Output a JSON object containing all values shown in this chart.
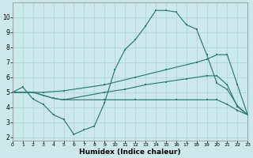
{
  "background_color": "#cce8e8",
  "grid_color": "#aad4d4",
  "line_color": "#2d7a72",
  "xlabel": "Humidex (Indice chaleur)",
  "xlim": [
    0,
    23
  ],
  "ylim": [
    1.8,
    11.0
  ],
  "yticks": [
    2,
    3,
    4,
    5,
    6,
    7,
    8,
    9,
    10
  ],
  "xticks": [
    0,
    1,
    2,
    3,
    4,
    5,
    6,
    7,
    8,
    9,
    10,
    11,
    12,
    13,
    14,
    15,
    16,
    17,
    18,
    19,
    20,
    21,
    22,
    23
  ],
  "curve1_x": [
    0,
    1,
    2,
    3,
    4,
    5,
    6,
    7,
    8,
    9,
    10,
    11,
    12,
    13,
    14,
    15,
    16,
    17,
    18,
    19,
    20,
    21,
    22,
    23
  ],
  "curve1_y": [
    5.0,
    5.35,
    4.55,
    4.2,
    3.5,
    3.2,
    2.2,
    2.5,
    2.75,
    4.3,
    6.5,
    7.85,
    8.5,
    9.4,
    10.45,
    10.45,
    10.35,
    9.5,
    9.2,
    7.5,
    5.6,
    5.2,
    4.1,
    3.5
  ],
  "curve2_x": [
    0,
    2,
    3,
    4,
    5,
    9,
    11,
    13,
    15,
    17,
    19,
    20,
    21,
    22,
    23
  ],
  "curve2_y": [
    5.0,
    5.0,
    4.8,
    4.6,
    4.5,
    5.0,
    5.2,
    5.5,
    5.7,
    5.9,
    6.1,
    6.1,
    5.5,
    4.05,
    3.5
  ],
  "curve3_x": [
    0,
    2,
    3,
    4,
    5,
    9,
    12,
    16,
    19,
    20,
    21,
    22,
    23
  ],
  "curve3_y": [
    5.0,
    5.0,
    4.8,
    4.6,
    4.5,
    4.5,
    4.5,
    4.5,
    4.5,
    4.5,
    4.2,
    3.8,
    3.5
  ],
  "curve4_x": [
    0,
    2,
    3,
    5,
    9,
    12,
    15,
    18,
    19,
    20,
    21,
    22,
    23
  ],
  "curve4_y": [
    5.0,
    5.0,
    5.0,
    5.1,
    5.5,
    6.0,
    6.5,
    7.0,
    7.2,
    7.5,
    7.5,
    5.5,
    3.5
  ]
}
